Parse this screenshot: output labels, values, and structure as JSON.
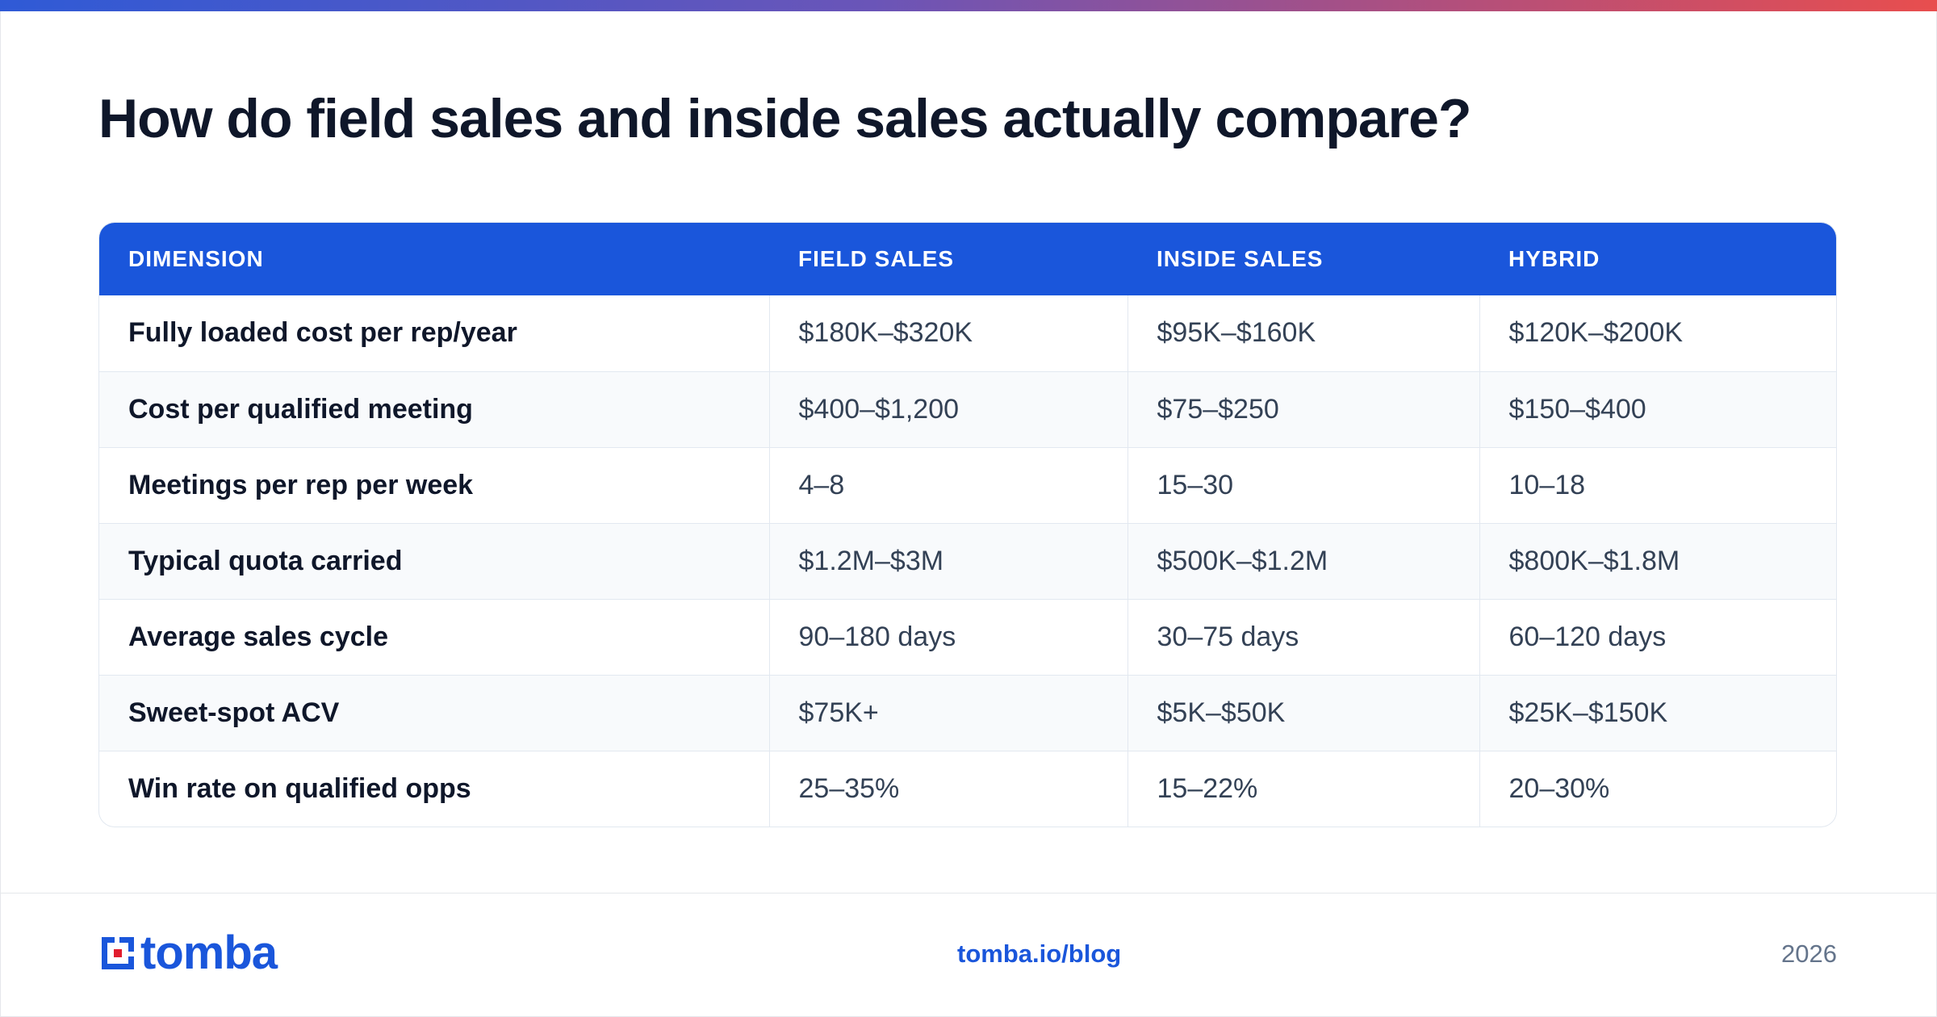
{
  "title": "How do field sales and inside sales actually compare?",
  "table": {
    "headers": [
      "DIMENSION",
      "FIELD SALES",
      "INSIDE SALES",
      "HYBRID"
    ],
    "rows": [
      [
        "Fully loaded cost per rep/year",
        "$180K–$320K",
        "$95K–$160K",
        "$120K–$200K"
      ],
      [
        "Cost per qualified meeting",
        "$400–$1,200",
        "$75–$250",
        "$150–$400"
      ],
      [
        "Meetings per rep per week",
        "4–8",
        "15–30",
        "10–18"
      ],
      [
        "Typical quota carried",
        "$1.2M–$3M",
        "$500K–$1.2M",
        "$800K–$1.8M"
      ],
      [
        "Average sales cycle",
        "90–180 days",
        "30–75 days",
        "60–120 days"
      ],
      [
        "Sweet-spot ACV",
        "$75K+",
        "$5K–$50K",
        "$25K–$150K"
      ],
      [
        "Win rate on qualified opps",
        "25–35%",
        "15–22%",
        "20–30%"
      ]
    ]
  },
  "footer": {
    "logo_text": "tomba",
    "logo_icon": "tomba-logo-icon",
    "link": "tomba.io/blog",
    "year": "2026"
  },
  "colors": {
    "header_bg": "#1a56db",
    "brand": "#1a56db",
    "accent_red": "#e11d2e"
  }
}
